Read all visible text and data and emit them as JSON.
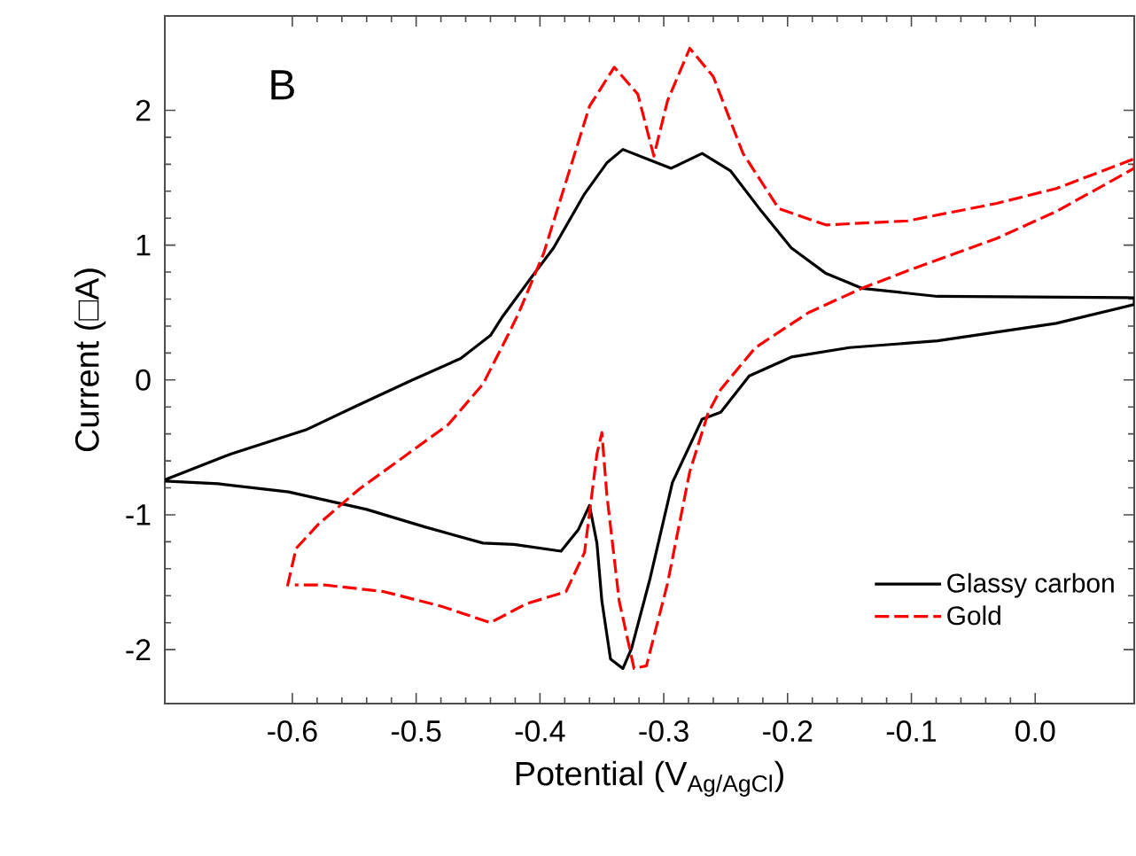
{
  "chart_data": {
    "type": "line",
    "xlabel": "Potential (V$_{Ag/AgCl}$)",
    "ylabel": "Current (□A)",
    "annotations": [
      "B"
    ],
    "xlim": [
      -0.703,
      0.08
    ],
    "ylim": [
      -2.4,
      2.7
    ],
    "xticks": [
      -0.6,
      -0.5,
      -0.4,
      -0.3,
      -0.2,
      -0.1,
      {
        "value": 0,
        "label": "0.0"
      }
    ],
    "yticks": [
      -2,
      -1,
      0,
      1,
      2
    ],
    "grid": false,
    "legend": "bottom right",
    "marker": "none",
    "series": [
      {
        "name": "Glassy carbon",
        "color": "#000000",
        "line_style": "solid",
        "x": [
          -0.703,
          -0.65,
          -0.589,
          -0.55,
          -0.503,
          -0.464,
          -0.44,
          -0.431,
          -0.407,
          -0.389,
          -0.364,
          -0.346,
          -0.333,
          -0.311,
          -0.294,
          -0.269,
          -0.246,
          -0.221,
          -0.197,
          -0.169,
          -0.14,
          -0.079,
          0.08,
          0.08,
          0.017,
          -0.079,
          -0.15,
          -0.197,
          -0.231,
          -0.254,
          -0.269,
          -0.293,
          -0.311,
          -0.326,
          -0.333,
          -0.343,
          -0.35,
          -0.354,
          -0.36,
          -0.369,
          -0.383,
          -0.421,
          -0.446,
          -0.493,
          -0.54,
          -0.603,
          -0.66,
          -0.703
        ],
        "values": [
          -0.74,
          -0.55,
          -0.37,
          -0.2,
          0.0,
          0.16,
          0.33,
          0.46,
          0.76,
          0.98,
          1.38,
          1.61,
          1.71,
          1.63,
          1.57,
          1.68,
          1.55,
          1.25,
          0.98,
          0.79,
          0.68,
          0.62,
          0.61,
          0.56,
          0.42,
          0.29,
          0.24,
          0.17,
          0.03,
          -0.24,
          -0.29,
          -0.76,
          -1.47,
          -1.99,
          -2.14,
          -2.07,
          -1.64,
          -1.21,
          -0.93,
          -1.11,
          -1.27,
          -1.22,
          -1.21,
          -1.09,
          -0.96,
          -0.83,
          -0.77,
          -0.75
        ]
      },
      {
        "name": "Gold",
        "color": "#ff0000",
        "line_style": "dashed",
        "x": [
          -0.604,
          -0.597,
          -0.579,
          -0.546,
          -0.507,
          -0.474,
          -0.446,
          -0.426,
          -0.417,
          -0.397,
          -0.379,
          -0.36,
          -0.34,
          -0.321,
          -0.308,
          -0.297,
          -0.279,
          -0.26,
          -0.236,
          -0.207,
          -0.169,
          -0.103,
          -0.031,
          0.017,
          0.08,
          0.08,
          0.017,
          -0.031,
          -0.103,
          -0.14,
          -0.183,
          -0.226,
          -0.254,
          -0.264,
          -0.279,
          -0.297,
          -0.314,
          -0.324,
          -0.336,
          -0.346,
          -0.35,
          -0.354,
          -0.364,
          -0.379,
          -0.411,
          -0.44,
          -0.479,
          -0.526,
          -0.574,
          -0.598
        ],
        "values": [
          -1.53,
          -1.25,
          -1.07,
          -0.81,
          -0.55,
          -0.33,
          -0.03,
          0.33,
          0.5,
          0.94,
          1.47,
          2.03,
          2.32,
          2.12,
          1.66,
          2.07,
          2.46,
          2.25,
          1.68,
          1.27,
          1.15,
          1.18,
          1.31,
          1.42,
          1.64,
          1.57,
          1.25,
          1.05,
          0.81,
          0.68,
          0.5,
          0.24,
          -0.07,
          -0.24,
          -0.68,
          -1.51,
          -2.12,
          -2.14,
          -1.64,
          -0.85,
          -0.39,
          -0.55,
          -1.28,
          -1.57,
          -1.66,
          -1.8,
          -1.68,
          -1.57,
          -1.52,
          -1.52
        ]
      }
    ]
  }
}
